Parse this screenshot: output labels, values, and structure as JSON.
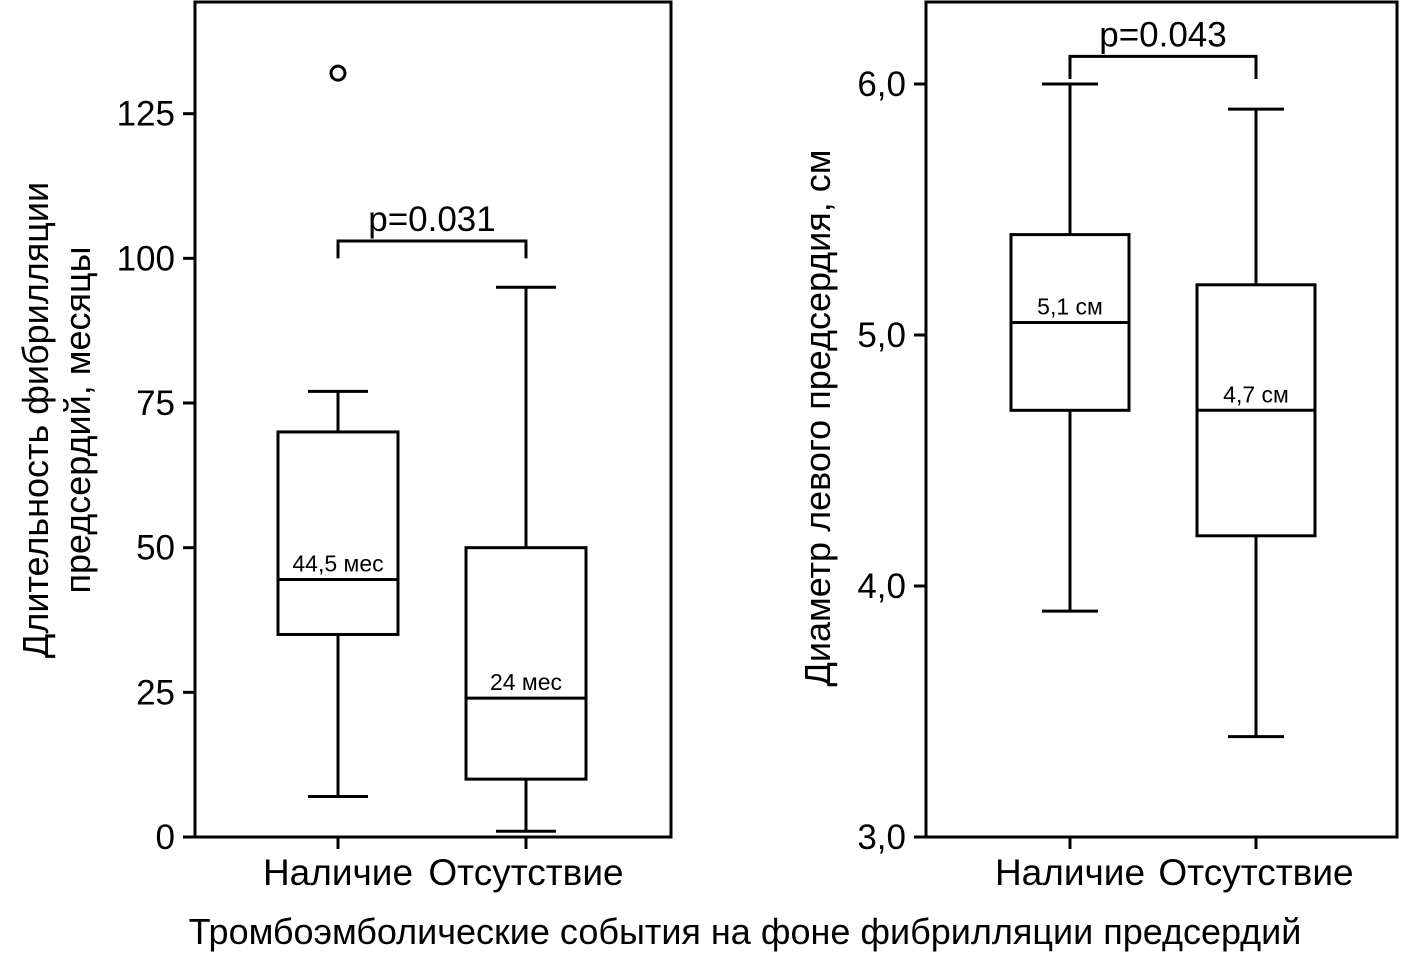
{
  "figure": {
    "shared_xlabel": "Тромбоэмболические события на фоне фибрилляции предсердий"
  },
  "chart_data": [
    {
      "type": "box",
      "ylabel_lines": [
        "Длительность фибрилляции",
        "предсердий, месяцы"
      ],
      "ylim": [
        0,
        145
      ],
      "yticks": [
        0,
        25,
        50,
        75,
        100,
        125
      ],
      "ytick_labels": [
        "0",
        "25",
        "50",
        "75",
        "100",
        "125"
      ],
      "categories": [
        "Наличие",
        "Отсутствие"
      ],
      "boxes": [
        {
          "category": "Наличие",
          "whisker_low": 7,
          "q1": 35,
          "median": 44.5,
          "q3": 70,
          "whisker_high": 77,
          "outliers": [
            132
          ],
          "median_label": "44,5 мес"
        },
        {
          "category": "Отсутствие",
          "whisker_low": 1,
          "q1": 10,
          "median": 24,
          "q3": 50,
          "whisker_high": 95,
          "outliers": [],
          "median_label": "24 мес"
        }
      ],
      "significance": {
        "label": "p=0.031",
        "bracket_y": 103,
        "tick_bottom": 100
      },
      "grid": false
    },
    {
      "type": "box",
      "ylabel": "Диаметр левого предсердия, см",
      "ylim": [
        3.0,
        6.33
      ],
      "yticks": [
        3.0,
        4.0,
        5.0,
        6.0
      ],
      "ytick_labels": [
        "3,0",
        "4,0",
        "5,0",
        "6,0"
      ],
      "categories": [
        "Наличие",
        "Отсутствие"
      ],
      "boxes": [
        {
          "category": "Наличие",
          "whisker_low": 3.9,
          "q1": 4.7,
          "median": 5.05,
          "q3": 5.4,
          "whisker_high": 6.0,
          "outliers": [],
          "median_label": "5,1 см"
        },
        {
          "category": "Отсутствие",
          "whisker_low": 3.4,
          "q1": 4.2,
          "median": 4.7,
          "q3": 5.2,
          "whisker_high": 5.9,
          "outliers": [],
          "median_label": "4,7 см"
        }
      ],
      "significance": {
        "label": "p=0.043",
        "bracket_y": 6.11,
        "tick_bottom": 6.02
      },
      "grid": false
    }
  ]
}
